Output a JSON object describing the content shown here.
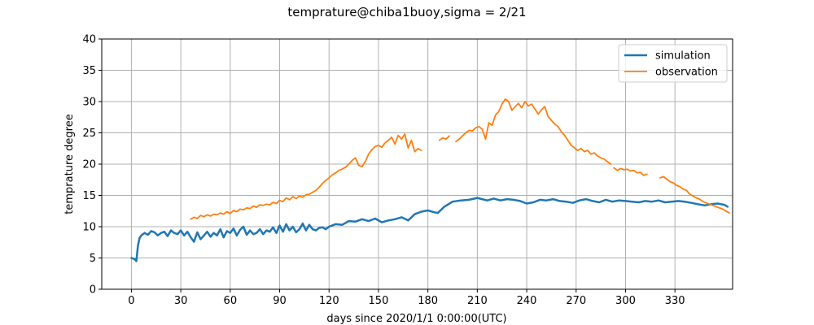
{
  "chart_data": {
    "type": "line",
    "title": "temprature@chiba1buoy,sigma = 2/21",
    "xlabel": "days since 2020/1/1 0:00:00(UTC)",
    "ylabel": "temprature degree",
    "xlim": [
      -18,
      365
    ],
    "ylim": [
      0,
      40
    ],
    "xticks": [
      0,
      30,
      60,
      90,
      120,
      150,
      180,
      210,
      240,
      270,
      300,
      330
    ],
    "yticks": [
      0,
      5,
      10,
      15,
      20,
      25,
      30,
      35,
      40
    ],
    "grid": true,
    "legend_position": "top-right",
    "series": [
      {
        "name": "simulation",
        "color": "#1f77b4",
        "x": [
          0,
          2,
          3,
          4,
          5,
          6,
          7,
          8,
          10,
          12,
          14,
          16,
          18,
          20,
          22,
          24,
          26,
          28,
          30,
          32,
          34,
          36,
          38,
          40,
          42,
          44,
          46,
          48,
          50,
          52,
          54,
          56,
          58,
          60,
          62,
          64,
          66,
          68,
          70,
          72,
          74,
          76,
          78,
          80,
          82,
          84,
          86,
          88,
          90,
          92,
          94,
          96,
          98,
          100,
          102,
          104,
          106,
          108,
          110,
          112,
          114,
          116,
          118,
          120,
          124,
          128,
          132,
          136,
          140,
          144,
          148,
          152,
          156,
          160,
          164,
          168,
          172,
          176,
          180,
          184,
          186,
          190,
          195,
          200,
          205,
          210,
          213,
          216,
          220,
          224,
          228,
          232,
          236,
          240,
          244,
          248,
          252,
          256,
          260,
          264,
          268,
          272,
          276,
          280,
          284,
          288,
          292,
          296,
          300,
          304,
          308,
          312,
          316,
          320,
          324,
          328,
          332,
          336,
          340,
          344,
          348,
          352,
          356,
          360,
          362
        ],
        "y": [
          5,
          4.8,
          4.5,
          7.0,
          8.2,
          8.6,
          8.8,
          9.0,
          8.7,
          9.3,
          9.1,
          8.6,
          9.0,
          9.2,
          8.5,
          9.4,
          9.0,
          8.8,
          9.4,
          8.6,
          9.2,
          8.3,
          7.6,
          9.1,
          8.0,
          8.6,
          9.2,
          8.4,
          9.0,
          8.6,
          9.6,
          8.3,
          9.3,
          9.0,
          9.7,
          8.6,
          9.5,
          10.0,
          8.7,
          9.4,
          8.8,
          9.0,
          9.6,
          8.8,
          9.4,
          9.2,
          9.9,
          9.0,
          10.2,
          9.2,
          10.4,
          9.4,
          10.0,
          9.1,
          9.6,
          10.5,
          9.4,
          10.3,
          9.6,
          9.4,
          9.8,
          9.9,
          9.6,
          10.0,
          10.4,
          10.3,
          10.9,
          10.8,
          11.2,
          10.9,
          11.3,
          10.7,
          11.0,
          11.2,
          11.5,
          11.0,
          12.0,
          12.4,
          12.6,
          12.3,
          12.2,
          13.2,
          14.0,
          14.2,
          14.3,
          14.6,
          14.4,
          14.2,
          14.5,
          14.2,
          14.4,
          14.3,
          14.1,
          13.7,
          13.9,
          14.3,
          14.2,
          14.4,
          14.1,
          14.0,
          13.8,
          14.2,
          14.4,
          14.1,
          13.9,
          14.3,
          14.0,
          14.2,
          14.1,
          14.0,
          13.9,
          14.1,
          14.0,
          14.2,
          13.9,
          14.0,
          14.1,
          14.0,
          13.8,
          13.6,
          13.4,
          13.6,
          13.7,
          13.5,
          13.2
        ]
      },
      {
        "name": "observation",
        "color": "#ff7f0e",
        "segments": [
          {
            "x": [
              36,
              38,
              40,
              42,
              44,
              46,
              48,
              50,
              52,
              54,
              56,
              58,
              60,
              62,
              64,
              66,
              68,
              70,
              72,
              74,
              76,
              78,
              80,
              82,
              84,
              86,
              88,
              90,
              92,
              94,
              96,
              98,
              100,
              102,
              104,
              106,
              108,
              110,
              112,
              114,
              116,
              118,
              120,
              122,
              124,
              126,
              128,
              130,
              132,
              134,
              136,
              138,
              140,
              142,
              144,
              146,
              148,
              150,
              152,
              154,
              156,
              158,
              160,
              162,
              164,
              166,
              168,
              170,
              172,
              174,
              176
            ],
            "y": [
              11.2,
              11.5,
              11.3,
              11.8,
              11.6,
              11.9,
              11.7,
              12.0,
              11.9,
              12.2,
              12.0,
              12.4,
              12.1,
              12.6,
              12.4,
              12.8,
              12.7,
              13.0,
              12.9,
              13.3,
              13.1,
              13.5,
              13.4,
              13.6,
              13.5,
              13.9,
              13.7,
              14.2,
              14.0,
              14.6,
              14.3,
              14.8,
              14.5,
              14.9,
              14.7,
              15.1,
              15.2,
              15.5,
              15.8,
              16.3,
              16.9,
              17.4,
              17.8,
              18.3,
              18.6,
              19.0,
              19.2,
              19.5,
              20.0,
              20.6,
              21.0,
              19.8,
              19.6,
              20.4,
              21.6,
              22.3,
              22.8,
              23.0,
              22.7,
              23.4,
              23.8,
              24.3,
              23.2,
              24.6,
              24.0,
              24.8,
              22.6,
              23.8,
              22.0,
              22.5,
              22.2
            ]
          },
          {
            "x": [
              187,
              189,
              191,
              193
            ],
            "y": [
              23.8,
              24.2,
              24.0,
              24.5
            ]
          },
          {
            "x": [
              197,
              199,
              201,
              203,
              205,
              207,
              209,
              211,
              213,
              215,
              217,
              219,
              221,
              223,
              225,
              227,
              229,
              231,
              233,
              235,
              237,
              239,
              241,
              243,
              245,
              247,
              249,
              251,
              253,
              255,
              257,
              259,
              261,
              263,
              265,
              267,
              269,
              271,
              273,
              275,
              277,
              279,
              281,
              283,
              285,
              287,
              289,
              291
            ],
            "y": [
              23.6,
              24.0,
              24.5,
              25.0,
              25.4,
              25.3,
              25.8,
              26.0,
              25.6,
              24.0,
              26.6,
              26.2,
              27.8,
              28.4,
              29.6,
              30.4,
              30.0,
              28.6,
              29.2,
              29.7,
              29.0,
              30.0,
              29.3,
              29.6,
              28.8,
              28.0,
              28.7,
              29.2,
              27.6,
              27.0,
              26.4,
              26.0,
              25.2,
              24.6,
              23.8,
              23.0,
              22.6,
              22.2,
              22.5,
              22.0,
              22.2,
              21.6,
              21.8,
              21.3,
              21.0,
              20.8,
              20.4,
              20.0
            ]
          },
          {
            "x": [
              293,
              295,
              297,
              299,
              301,
              303,
              305,
              307,
              309,
              311,
              313
            ],
            "y": [
              19.4,
              19.0,
              19.3,
              19.1,
              19.2,
              18.9,
              19.0,
              18.6,
              18.7,
              18.2,
              18.4
            ]
          },
          {
            "x": [
              321,
              323,
              325,
              327,
              329,
              331,
              333,
              335,
              337,
              339,
              341,
              343,
              345,
              347,
              349,
              351,
              353,
              355,
              357,
              359,
              361,
              363
            ],
            "y": [
              17.8,
              18.0,
              17.6,
              17.2,
              17.0,
              16.6,
              16.4,
              16.0,
              15.8,
              15.2,
              14.9,
              14.6,
              14.4,
              14.0,
              13.8,
              13.6,
              13.4,
              13.2,
              13.0,
              12.8,
              12.5,
              12.2
            ]
          }
        ]
      }
    ]
  }
}
